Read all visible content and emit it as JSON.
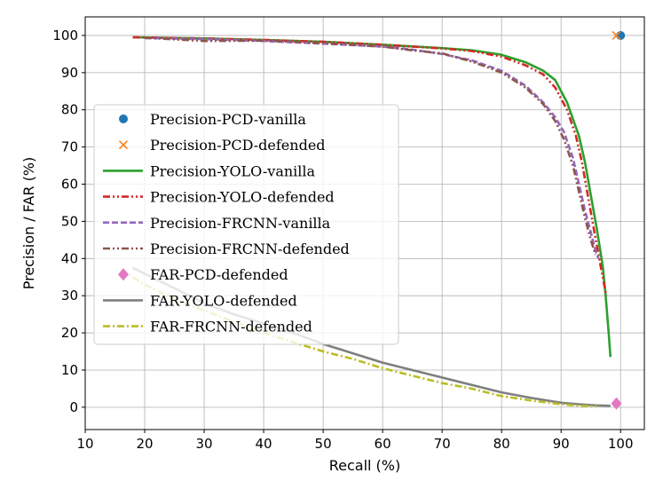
{
  "chart_data": {
    "type": "line",
    "title": "",
    "xlabel": "Recall (%)",
    "ylabel": "Precision / FAR (%)",
    "xlim": [
      10,
      104
    ],
    "ylim": [
      -6,
      105
    ],
    "xticks": [
      10,
      20,
      30,
      40,
      50,
      60,
      70,
      80,
      90,
      100
    ],
    "yticks": [
      0,
      10,
      20,
      30,
      40,
      50,
      60,
      70,
      80,
      90,
      100
    ],
    "grid": true,
    "legend_position": "center-left",
    "series": [
      {
        "name": "Precision-PCD-vanilla",
        "kind": "marker",
        "marker": "circle",
        "color": "#1f77b4",
        "x": [
          100
        ],
        "y": [
          100
        ]
      },
      {
        "name": "Precision-PCD-defended",
        "kind": "marker",
        "marker": "x",
        "color": "#ff7f0e",
        "x": [
          99.3
        ],
        "y": [
          100
        ]
      },
      {
        "name": "Precision-YOLO-vanilla",
        "kind": "line",
        "dash": "solid",
        "color": "#2ca02c",
        "x": [
          18,
          30,
          40,
          50,
          60,
          70,
          75,
          80,
          84,
          87,
          89,
          91,
          93,
          94,
          95,
          96,
          97,
          97.5,
          98,
          98.3
        ],
        "y": [
          99.5,
          99.2,
          98.8,
          98.3,
          97.5,
          96.6,
          96,
          94.8,
          92.8,
          90.5,
          88,
          82,
          73,
          66,
          57,
          48,
          38,
          30,
          20,
          13.5
        ]
      },
      {
        "name": "Precision-YOLO-defended",
        "kind": "line",
        "dash": "dashdotdot",
        "color": "#d62728",
        "x": [
          18,
          30,
          40,
          50,
          60,
          70,
          75,
          80,
          84,
          87,
          89,
          91,
          92.5,
          93.5,
          94.5,
          95.5,
          96.3,
          97,
          97.6
        ],
        "y": [
          99.5,
          99.2,
          98.8,
          98.3,
          97.5,
          96.5,
          95.8,
          94.3,
          92,
          89.5,
          86,
          80,
          73,
          66,
          57,
          48,
          41,
          35,
          30
        ]
      },
      {
        "name": "Precision-FRCNN-vanilla",
        "kind": "line",
        "dash": "dashed",
        "color": "#9467bd",
        "x": [
          20,
          30,
          40,
          50,
          60,
          65,
          70,
          75,
          80,
          84,
          87,
          89,
          90.5,
          92,
          93,
          94,
          95,
          95.8,
          96.3
        ],
        "y": [
          99.3,
          99,
          98.5,
          97.8,
          97,
          96.2,
          95,
          93.3,
          90.5,
          86.5,
          82,
          78,
          74,
          67,
          60,
          53,
          47,
          42,
          40
        ]
      },
      {
        "name": "Precision-FRCNN-defended",
        "kind": "line",
        "dash": "dashdotdot",
        "color": "#8c564b",
        "x": [
          20,
          30,
          40,
          50,
          60,
          65,
          70,
          75,
          80,
          84,
          87,
          89,
          90.5,
          92,
          93,
          94,
          95,
          95.8
        ],
        "y": [
          99.4,
          98.5,
          98.6,
          97.9,
          97,
          96,
          95.2,
          93,
          90,
          86,
          81.5,
          77,
          72,
          65,
          58,
          51,
          45,
          41
        ]
      },
      {
        "name": "FAR-PCD-defended",
        "kind": "marker",
        "marker": "diamond",
        "color": "#e377c2",
        "x": [
          99.3
        ],
        "y": [
          1
        ]
      },
      {
        "name": "FAR-YOLO-defended",
        "kind": "line",
        "dash": "solid",
        "color": "#7f7f7f",
        "x": [
          18,
          25,
          30,
          35,
          40,
          45,
          50,
          55,
          60,
          65,
          70,
          75,
          80,
          85,
          90,
          93,
          96,
          98.3
        ],
        "y": [
          37.5,
          32,
          28,
          25,
          22.5,
          20,
          17,
          14.5,
          12,
          10,
          8,
          6,
          4,
          2.5,
          1.2,
          0.8,
          0.5,
          0.4
        ]
      },
      {
        "name": "FAR-FRCNN-defended",
        "kind": "line",
        "dash": "dashdot",
        "color": "#bcbd22",
        "x": [
          16,
          20,
          25,
          30,
          35,
          40,
          45,
          50,
          55,
          60,
          65,
          70,
          75,
          80,
          85,
          90,
          93,
          96
        ],
        "y": [
          37,
          33,
          29,
          26,
          23,
          20,
          17.5,
          15,
          13,
          10.5,
          8.5,
          6.5,
          5,
          3,
          1.8,
          0.8,
          0.4,
          0.3
        ]
      }
    ]
  }
}
